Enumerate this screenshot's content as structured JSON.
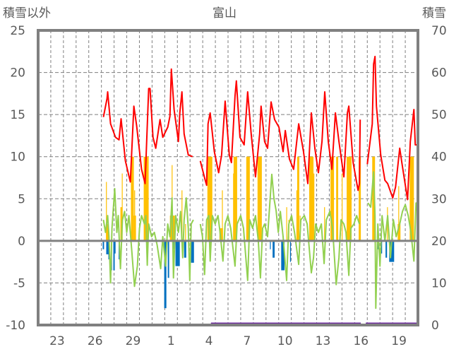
{
  "chart_data": {
    "type": "line",
    "title": "富山",
    "left_axis_label": "積雪以外",
    "right_axis_label": "積雪",
    "left_ylim": [
      -10,
      25
    ],
    "left_ticks": [
      "25",
      "20",
      "15",
      "10",
      "5",
      "0",
      "-5",
      "-10"
    ],
    "left_tick_values": [
      25,
      20,
      15,
      10,
      5,
      0,
      -5,
      -10
    ],
    "right_ylim": [
      0,
      70
    ],
    "right_ticks": [
      "70",
      "60",
      "50",
      "40",
      "30",
      "20",
      "10",
      "0"
    ],
    "right_tick_values": [
      70,
      60,
      50,
      40,
      30,
      20,
      10,
      0
    ],
    "x_range_days": [
      0,
      30
    ],
    "x_tick_labels": [
      "23",
      "26",
      "29",
      "1",
      "4",
      "7",
      "10",
      "13",
      "16",
      "19"
    ],
    "x_tick_days": [
      1,
      4,
      7,
      10,
      13,
      16,
      19,
      22,
      25,
      28
    ],
    "grid": true,
    "colors": {
      "red": "#FF0000",
      "green": "#92D050",
      "yellow": "#FFC000",
      "blue": "#0070C0",
      "purple": "#7030A0",
      "axis": "#808080",
      "text": "#595959"
    },
    "red_series": [
      [
        5.16,
        14.7
      ],
      [
        5.44,
        16.9
      ],
      [
        5.49,
        17.7
      ],
      [
        5.72,
        13.9
      ],
      [
        6.11,
        12.3
      ],
      [
        6.39,
        12.0
      ],
      [
        6.55,
        14.5
      ],
      [
        6.89,
        9.5
      ],
      [
        7.28,
        7.0
      ],
      [
        7.56,
        16.0
      ],
      [
        7.78,
        13.7
      ],
      [
        8.17,
        8.5
      ],
      [
        8.45,
        6.8
      ],
      [
        8.73,
        18.1
      ],
      [
        8.84,
        18.1
      ],
      [
        9.07,
        12.3
      ],
      [
        9.29,
        11.0
      ],
      [
        9.63,
        14.4
      ],
      [
        9.85,
        12.3
      ],
      [
        10.24,
        13.5
      ],
      [
        10.41,
        14.8
      ],
      [
        10.52,
        20.4
      ],
      [
        10.74,
        15.6
      ],
      [
        11.08,
        11.8
      ],
      [
        11.19,
        15.2
      ],
      [
        11.36,
        17.7
      ],
      [
        11.53,
        12.7
      ],
      [
        11.86,
        10.2
      ],
      [
        12.2,
        10.0
      ],
      null,
      [
        12.81,
        9.5
      ],
      [
        13.2,
        7.2
      ],
      [
        13.31,
        6.6
      ],
      [
        13.42,
        13.9
      ],
      [
        13.59,
        15.2
      ],
      [
        13.92,
        10.6
      ],
      [
        14.26,
        8.1
      ],
      [
        14.49,
        10.2
      ],
      [
        14.77,
        16.6
      ],
      [
        15.1,
        10.2
      ],
      [
        15.27,
        9.3
      ],
      [
        15.55,
        17.2
      ],
      [
        15.66,
        19.0
      ],
      [
        15.94,
        12.3
      ],
      [
        16.27,
        11.4
      ],
      [
        16.55,
        17.7
      ],
      [
        16.83,
        12.7
      ],
      [
        17.17,
        7.6
      ],
      [
        17.5,
        12.7
      ],
      [
        17.61,
        16.0
      ],
      [
        17.89,
        11.8
      ],
      [
        18.12,
        11.0
      ],
      [
        18.4,
        16.5
      ],
      [
        18.68,
        14.4
      ],
      [
        19.02,
        13.5
      ],
      [
        19.35,
        10.6
      ],
      [
        19.52,
        13.1
      ],
      [
        19.85,
        9.7
      ],
      [
        20.18,
        8.5
      ],
      [
        20.58,
        13.9
      ],
      [
        20.96,
        10.6
      ],
      [
        21.3,
        6.8
      ],
      [
        21.58,
        15.2
      ],
      [
        21.86,
        11.0
      ],
      [
        22.14,
        8.1
      ],
      [
        22.42,
        11.8
      ],
      [
        22.64,
        17.7
      ],
      [
        22.92,
        11.8
      ],
      [
        23.2,
        8.5
      ],
      [
        23.48,
        15.2
      ],
      [
        23.76,
        11.8
      ],
      [
        24.15,
        7.6
      ],
      [
        24.43,
        15.2
      ],
      [
        24.54,
        16.0
      ],
      [
        24.88,
        9.3
      ],
      [
        25.27,
        6.0
      ],
      [
        25.38,
        6.8
      ],
      [
        25.44,
        14.4
      ],
      null,
      [
        26.0,
        9.1
      ],
      [
        26.22,
        11.8
      ],
      [
        26.39,
        13.9
      ],
      [
        26.5,
        21.0
      ],
      [
        26.61,
        21.9
      ],
      [
        26.72,
        16.0
      ],
      [
        27.06,
        10.2
      ],
      [
        27.39,
        7.2
      ],
      [
        27.61,
        6.8
      ],
      [
        28.01,
        5.1
      ],
      [
        28.23,
        6.4
      ],
      [
        28.56,
        11.0
      ],
      [
        28.73,
        9.3
      ],
      [
        29.18,
        4.9
      ],
      [
        29.4,
        11.8
      ],
      [
        29.68,
        15.6
      ],
      [
        29.79,
        11.4
      ],
      [
        30.0,
        11.4
      ]
    ],
    "green_series": [
      [
        5.16,
        2.5
      ],
      [
        5.32,
        1.0
      ],
      [
        5.49,
        3.0
      ],
      [
        5.6,
        0.5
      ],
      [
        5.72,
        -5.0
      ],
      [
        5.83,
        1.5
      ],
      [
        6.05,
        6.2
      ],
      [
        6.22,
        1.0
      ],
      [
        6.33,
        3.0
      ],
      [
        6.5,
        -3.3
      ],
      [
        6.66,
        2.5
      ],
      [
        6.83,
        3.5
      ],
      [
        7.0,
        1.0
      ],
      [
        7.17,
        3.0
      ],
      [
        7.39,
        -1.0
      ],
      [
        7.61,
        -5.4
      ],
      [
        7.84,
        -3.0
      ],
      [
        8.01,
        1.5
      ],
      [
        8.17,
        3.0
      ],
      [
        8.4,
        2.0
      ],
      [
        8.51,
        3.0
      ],
      [
        8.62,
        -2.9
      ],
      [
        8.73,
        2.0
      ],
      [
        8.96,
        0.5
      ],
      [
        9.18,
        1.0
      ],
      [
        9.4,
        -0.5
      ],
      [
        9.68,
        -3.3
      ],
      [
        9.85,
        0.5
      ],
      [
        10.07,
        -3.0
      ],
      [
        10.24,
        2.0
      ],
      [
        10.41,
        0.5
      ],
      [
        10.58,
        5.1
      ],
      [
        10.69,
        -4.4
      ],
      [
        10.86,
        3.0
      ],
      [
        11.08,
        1.0
      ],
      [
        11.25,
        3.5
      ],
      [
        11.42,
        -2.0
      ],
      [
        11.53,
        2.5
      ],
      [
        11.7,
        5.1
      ],
      [
        11.86,
        1.5
      ],
      [
        11.98,
        -4.7
      ],
      [
        12.09,
        2.0
      ],
      [
        12.26,
        2.5
      ],
      null,
      [
        12.81,
        2.0
      ],
      [
        12.98,
        0.5
      ],
      [
        13.15,
        -4.0
      ],
      [
        13.31,
        2.5
      ],
      [
        13.48,
        3.0
      ],
      [
        13.59,
        -2.4
      ],
      [
        13.76,
        3.0
      ],
      [
        13.98,
        2.0
      ],
      [
        14.21,
        3.0
      ],
      [
        14.37,
        1.0
      ],
      [
        14.6,
        -2.4
      ],
      [
        14.77,
        2.0
      ],
      [
        14.99,
        3.0
      ],
      [
        15.21,
        1.5
      ],
      [
        15.55,
        -3.0
      ],
      [
        15.72,
        2.0
      ],
      [
        16.0,
        3.0
      ],
      [
        16.22,
        1.5
      ],
      [
        16.55,
        -4.7
      ],
      [
        16.72,
        2.5
      ],
      [
        16.94,
        1.5
      ],
      [
        17.17,
        3.0
      ],
      [
        17.39,
        0.0
      ],
      [
        17.56,
        -4.4
      ],
      [
        17.73,
        1.5
      ],
      [
        17.89,
        2.0
      ],
      [
        18.12,
        0.5
      ],
      [
        18.46,
        7.9
      ],
      [
        18.63,
        5.0
      ],
      [
        18.8,
        3.6
      ],
      [
        18.97,
        1.0
      ],
      [
        19.13,
        3.5
      ],
      [
        19.35,
        0.5
      ],
      [
        19.63,
        -4.7
      ],
      [
        19.8,
        2.0
      ],
      [
        20.02,
        3.0
      ],
      [
        20.25,
        1.0
      ],
      [
        20.58,
        -2.8
      ],
      [
        20.75,
        2.5
      ],
      [
        21.03,
        3.0
      ],
      [
        21.25,
        2.0
      ],
      [
        21.58,
        -3.8
      ],
      [
        21.75,
        -2.0
      ],
      [
        21.92,
        2.0
      ],
      [
        22.14,
        1.0
      ],
      [
        22.37,
        2.0
      ],
      [
        22.59,
        -2.7
      ],
      [
        22.76,
        2.5
      ],
      [
        23.04,
        3.5
      ],
      [
        23.26,
        1.5
      ],
      [
        23.54,
        -5.2
      ],
      [
        23.76,
        -2.0
      ],
      [
        23.93,
        2.5
      ],
      [
        24.15,
        2.0
      ],
      [
        24.32,
        1.0
      ],
      [
        24.54,
        -4.1
      ],
      [
        24.71,
        1.5
      ],
      [
        24.94,
        2.0
      ],
      [
        25.16,
        3.0
      ],
      [
        25.38,
        2.0
      ],
      null,
      [
        26.05,
        4.5
      ],
      [
        26.27,
        4.0
      ],
      [
        26.5,
        8.2
      ],
      [
        26.61,
        3.0
      ],
      [
        26.67,
        -8.0
      ],
      [
        26.83,
        2.0
      ],
      [
        27.0,
        -3.0
      ],
      [
        27.17,
        3.0
      ],
      [
        27.39,
        0.0
      ],
      [
        27.61,
        3.0
      ],
      [
        27.83,
        -2.0
      ],
      [
        28.06,
        2.5
      ],
      [
        28.28,
        0.5
      ],
      [
        28.56,
        2.0
      ],
      [
        28.78,
        3.5
      ],
      [
        29.0,
        4.3
      ],
      [
        29.23,
        3.0
      ],
      [
        29.45,
        1.0
      ],
      [
        29.68,
        -2.4
      ],
      [
        29.85,
        4.5
      ],
      [
        30.0,
        3.0
      ]
    ],
    "yellow_bars": [
      [
        5.38,
        5.55,
        2.0
      ],
      [
        5.36,
        5.42,
        7.0
      ],
      [
        6.5,
        6.66,
        4.0
      ],
      [
        6.61,
        6.66,
        8.0
      ],
      [
        7.33,
        7.56,
        10
      ],
      [
        7.56,
        7.73,
        3.0
      ],
      [
        7.59,
        7.66,
        6.0
      ],
      [
        8.34,
        8.73,
        10
      ],
      [
        10.41,
        10.8,
        3.0
      ],
      [
        10.55,
        10.61,
        9.0
      ],
      [
        11.33,
        11.39,
        6.0
      ],
      [
        11.61,
        11.67,
        2.0
      ],
      [
        13.37,
        13.76,
        10
      ],
      [
        14.32,
        14.6,
        1.5
      ],
      [
        14.52,
        14.58,
        6.0
      ],
      [
        15.4,
        15.46,
        8.0
      ],
      [
        15.44,
        15.72,
        10
      ],
      [
        16.44,
        16.72,
        10
      ],
      [
        17.33,
        17.67,
        10
      ],
      [
        19.6,
        19.66,
        4.0
      ],
      [
        19.77,
        19.83,
        2.5
      ],
      [
        20.4,
        20.46,
        6.0
      ],
      [
        20.46,
        20.63,
        10
      ],
      [
        20.66,
        20.72,
        3.0
      ],
      [
        21.41,
        21.75,
        10
      ],
      [
        21.75,
        21.81,
        8.0
      ],
      [
        22.59,
        22.65,
        4.0
      ],
      [
        23.09,
        23.37,
        10
      ],
      [
        23.54,
        23.7,
        10
      ],
      [
        23.98,
        24.04,
        8.0
      ],
      [
        24.37,
        24.76,
        10
      ],
      [
        25.32,
        25.49,
        10
      ],
      [
        26.39,
        26.61,
        10
      ],
      [
        27.56,
        27.62,
        4.0
      ],
      [
        28.4,
        28.62,
        2.0
      ],
      [
        28.45,
        28.51,
        6.5
      ],
      [
        29.35,
        29.68,
        10
      ]
    ],
    "blue_bars": [
      [
        5.1,
        5.21,
        -1.0
      ],
      [
        5.38,
        5.55,
        -1.6
      ],
      [
        5.55,
        5.66,
        -2.2
      ],
      [
        5.77,
        5.83,
        -3.5
      ],
      [
        5.94,
        6.05,
        -3.5
      ],
      [
        6.05,
        6.11,
        -1.5
      ],
      [
        6.36,
        6.42,
        -2.2
      ],
      [
        9.96,
        10.13,
        -8.0
      ],
      [
        10.24,
        10.35,
        -4.4
      ],
      [
        10.66,
        10.72,
        -1.0
      ],
      [
        10.85,
        11.19,
        -3.0
      ],
      [
        11.53,
        11.7,
        -2.0
      ],
      [
        12.08,
        12.31,
        -2.6
      ],
      [
        18.31,
        18.37,
        -1.0
      ],
      [
        18.52,
        18.68,
        -2.0
      ],
      [
        19.2,
        19.46,
        -3.5
      ],
      [
        19.9,
        19.96,
        -2.5
      ],
      [
        26.78,
        26.89,
        -1.0
      ],
      [
        27.06,
        27.17,
        -1.5
      ],
      [
        27.44,
        27.56,
        -2.0
      ],
      [
        27.73,
        28.12,
        -2.5
      ]
    ],
    "purple_snow_depth": [
      [
        13.65,
        25.49,
        0
      ],
      [
        25.88,
        30.0,
        0
      ]
    ]
  }
}
